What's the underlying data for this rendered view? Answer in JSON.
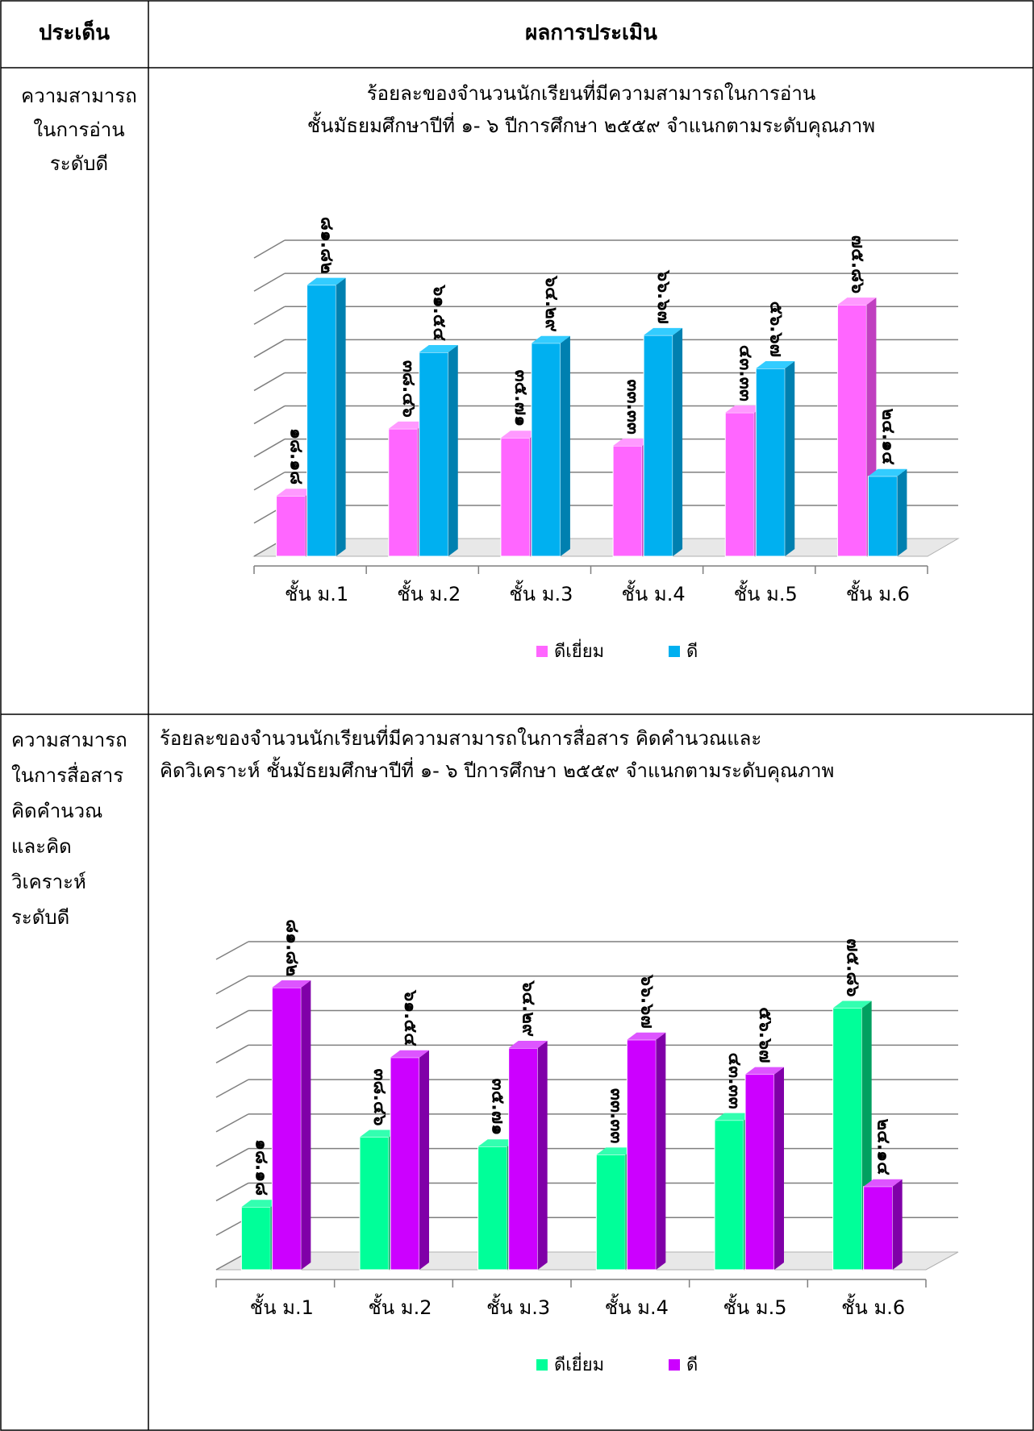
{
  "table": {
    "header_topic": "ประเด็น",
    "header_result": "ผลการประเมิน"
  },
  "rows": [
    {
      "topic_lines": [
        "ความสามารถ",
        "ในการอ่าน",
        "ระดับดี"
      ],
      "title_lines": [
        "ร้อยละของจำนวนนักเรียนที่มีความสามารถในการอ่าน",
        "ชั้นมัธยมศึกษาปีที่ ๑- ๖ ปีการศึกษา ๒๕๕๙ จำแนกตามระดับคุณภาพ"
      ]
    },
    {
      "topic_lines": [
        "ความสามารถ",
        "ในการสื่อสาร",
        "คิดคำนวณ",
        "และคิด",
        "วิเคราะห์",
        "ระดับดี"
      ],
      "title_lines": [
        "ร้อยละของจำนวนนักเรียนที่มีความสามารถในการสื่อสาร คิดคำนวณและ",
        "คิดวิเคราะห์ ชั้นมัธยมศึกษาปีที่ ๑- ๖ ปีการศึกษา ๒๕๕๙ จำแนกตามระดับคุณภาพ"
      ]
    }
  ],
  "chart_data": [
    {
      "type": "bar",
      "categories": [
        "ชั้น ม.1",
        "ชั้น ม.2",
        "ชั้น ม.3",
        "ชั้น ม.4",
        "ชั้น ม.5",
        "ชั้น ม.6"
      ],
      "series": [
        {
          "name": "ดีเยี่ยม",
          "values": [
            18.18,
            38.46,
            35.71,
            33.33,
            43.33,
            75.86
          ],
          "labels": [
            "๑๘.๑๘",
            "๓๘.๔๖",
            "๓๕.๗๑",
            "๓๓.๓๓",
            "๔๓.๓๓",
            "๗๕.๘๖"
          ],
          "color": "#ff66ff",
          "side": "#c040c0",
          "top": "#ff99ff"
        },
        {
          "name": "ดี",
          "values": [
            81.82,
            61.54,
            64.29,
            66.67,
            56.67,
            24.14
          ],
          "labels": [
            "๘๑.๘๒",
            "๖๑.๕๔",
            "๖๔.๒๙",
            "๖๖.๖๗",
            "๕๖.๖๗",
            "๒๔.๑๔"
          ],
          "color": "#00b0f0",
          "side": "#0080b0",
          "top": "#33ccff"
        }
      ],
      "ylim": [
        0,
        90
      ],
      "grid": true,
      "legend": "bottom"
    },
    {
      "type": "bar",
      "categories": [
        "ชั้น ม.1",
        "ชั้น ม.2",
        "ชั้น ม.3",
        "ชั้น ม.4",
        "ชั้น ม.5",
        "ชั้น ม.6"
      ],
      "series": [
        {
          "name": "ดีเยี่ยม",
          "values": [
            18.18,
            38.46,
            35.71,
            33.33,
            43.33,
            75.86
          ],
          "labels": [
            "๑๘.๑๘",
            "๓๘.๔๖",
            "๓๕.๗๑",
            "๓๓.๓๓",
            "๔๓.๓๓",
            "๗๕.๘๖"
          ],
          "color": "#00ff99",
          "side": "#00a060",
          "top": "#33ffb0"
        },
        {
          "name": "ดี",
          "values": [
            81.82,
            61.54,
            64.29,
            66.67,
            56.67,
            24.14
          ],
          "labels": [
            "๘๑.๘๒",
            "๖๑.๕๔",
            "๖๔.๒๙",
            "๖๖.๖๗",
            "๕๖.๖๗",
            "๒๔.๑๔"
          ],
          "color": "#cc00ff",
          "side": "#8000a8",
          "top": "#dd55ff"
        }
      ],
      "ylim": [
        0,
        90
      ],
      "grid": true,
      "legend": "bottom"
    }
  ]
}
